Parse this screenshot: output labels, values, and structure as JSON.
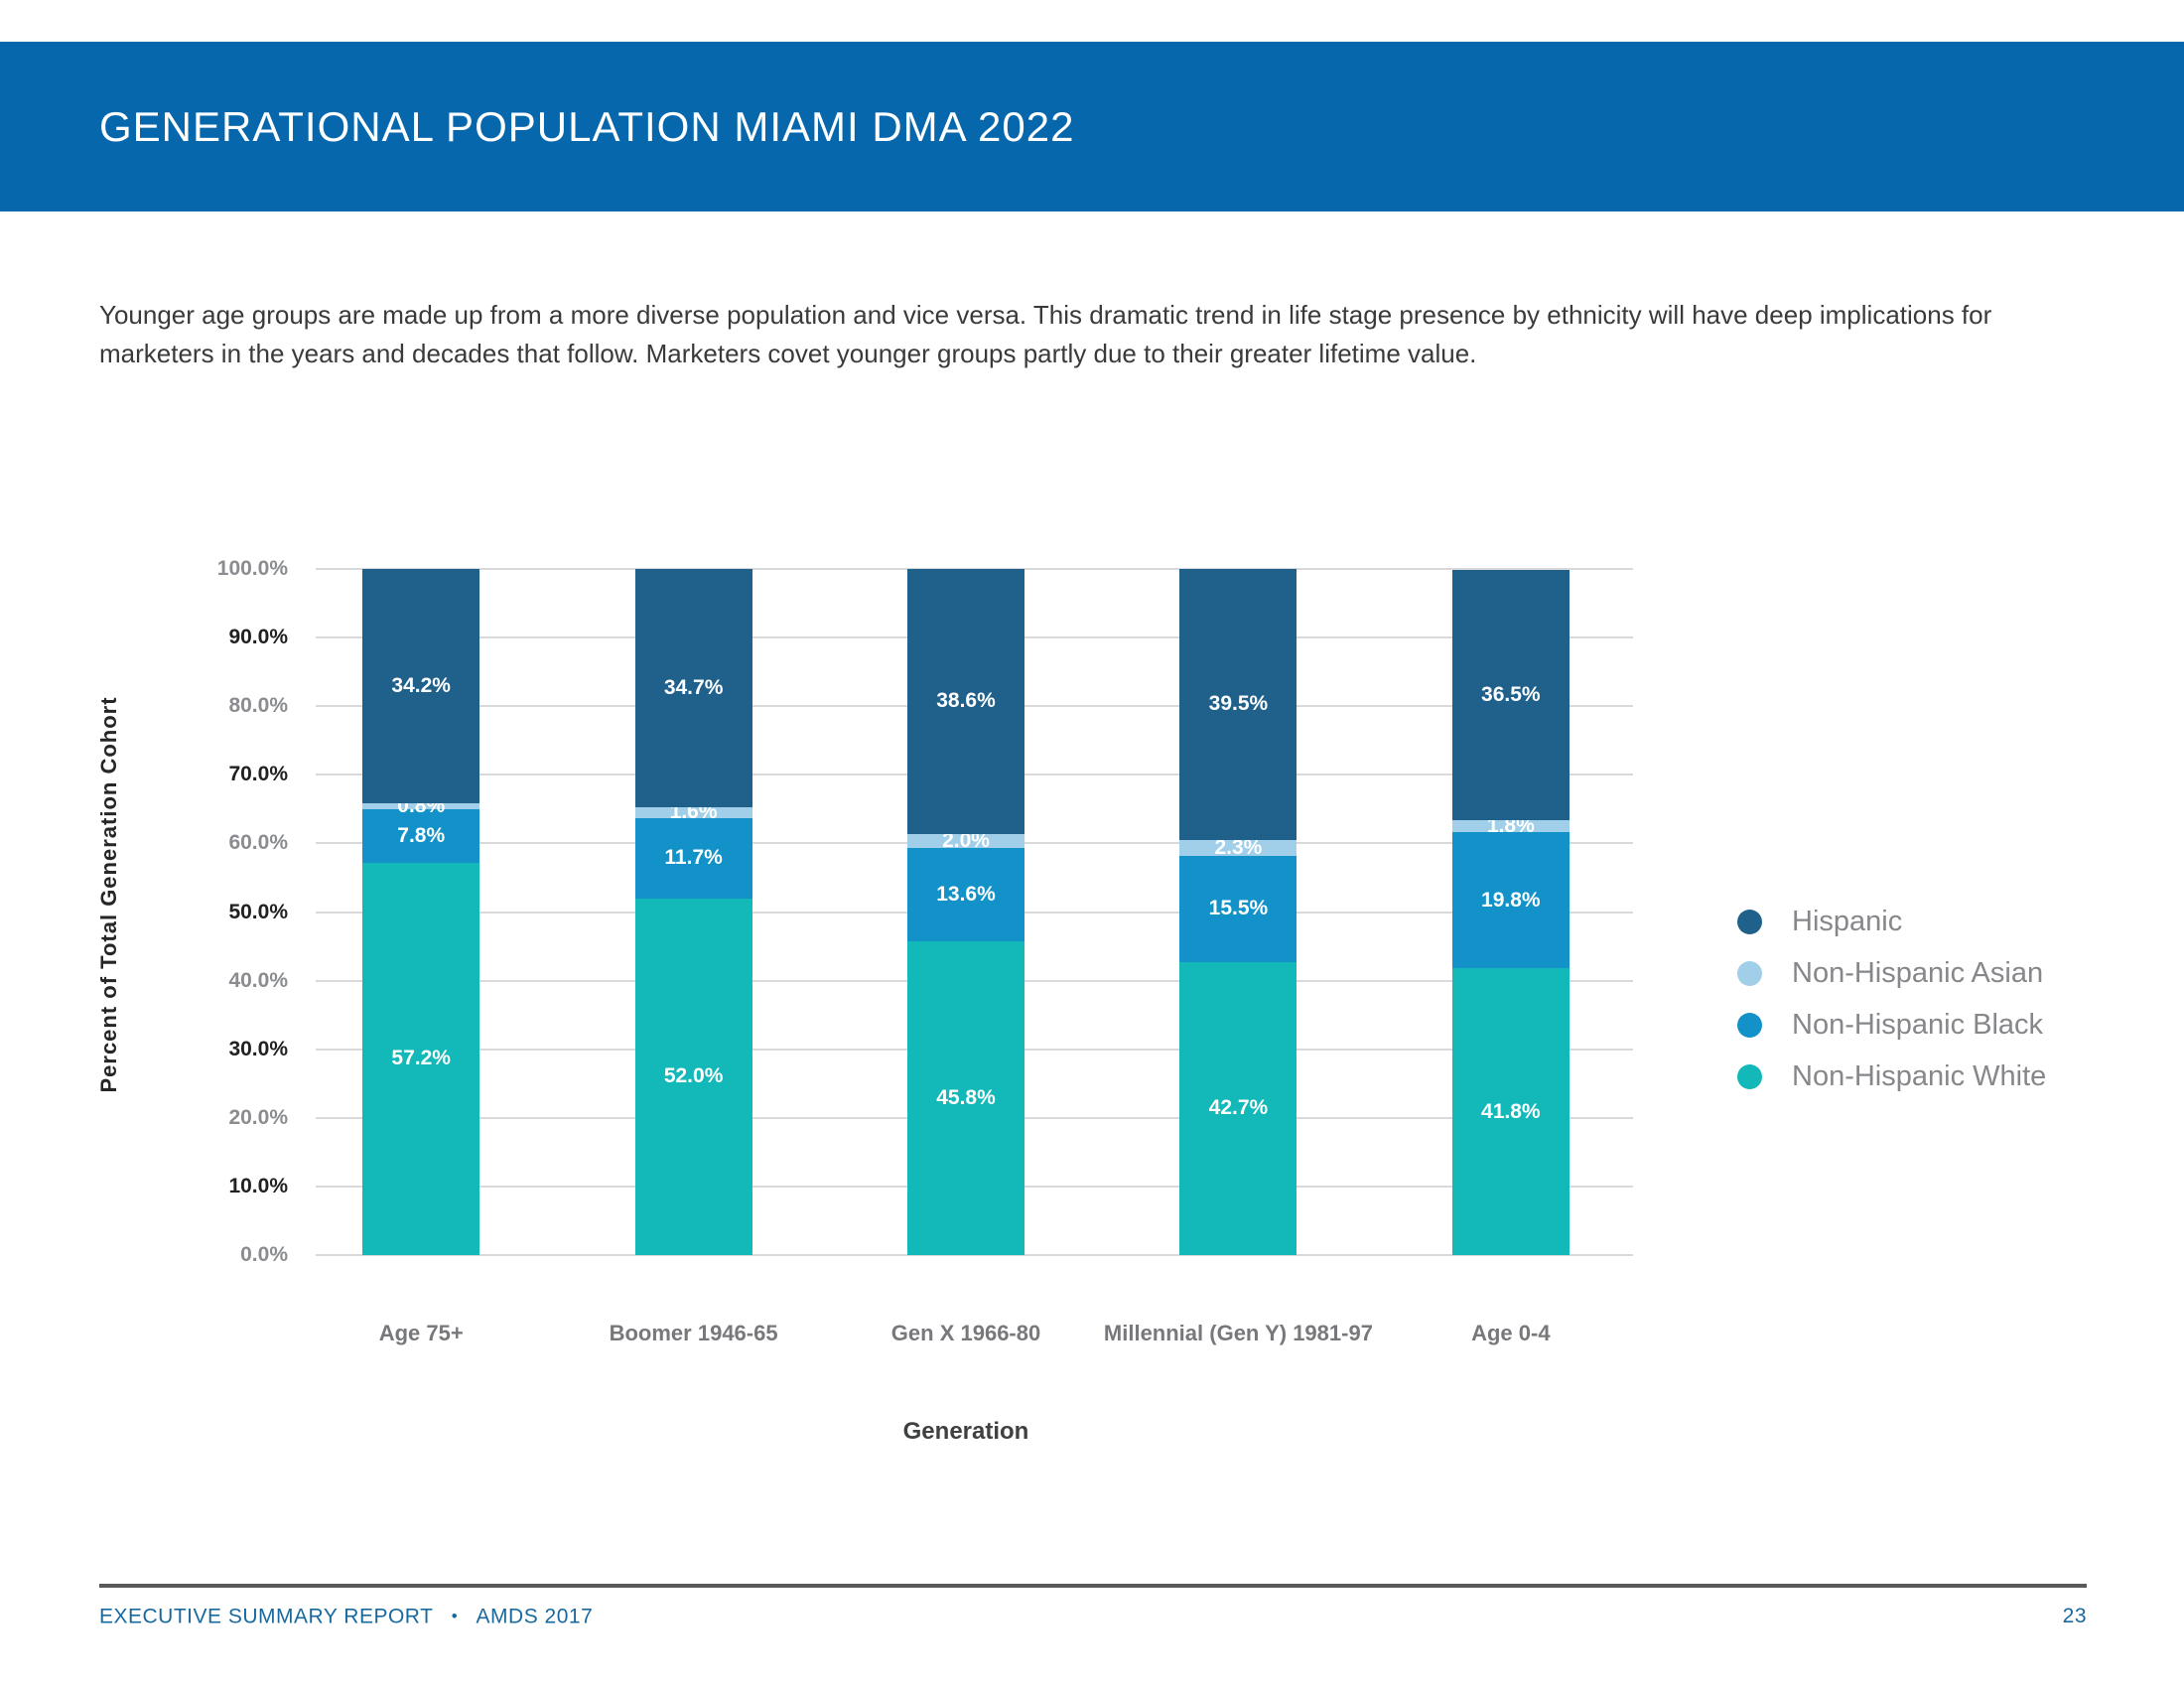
{
  "page": {
    "header": {
      "title": "GENERATIONAL POPULATION MIAMI DMA 2022"
    },
    "intro": "Younger age groups are made up from a more diverse population and vice versa. This dramatic trend in life stage presence by ethnicity will have deep implications for marketers in the years and decades that follow. Marketers covet younger groups partly due to their greater lifetime value.",
    "footer": {
      "report": "EXECUTIVE SUMMARY REPORT",
      "bullet": "•",
      "edition": "AMDS 2017",
      "page_number": "23"
    }
  },
  "colors": {
    "header_band": "#0667AC",
    "gridline": "#D9D9DB",
    "ytick_dark": "#212121",
    "ytick_gray": "#8A8C8F",
    "footer_text": "#19699E"
  },
  "chart_data": {
    "type": "bar",
    "stacked": true,
    "xlabel": "Generation",
    "ylabel": "Percent of Total Generation Cohort",
    "ylim": [
      0,
      100
    ],
    "ytick_step": 10,
    "ytick_labels": [
      "100.0%",
      "90.0%",
      "80.0%",
      "70.0%",
      "60.0%",
      "50.0%",
      "40.0%",
      "30.0%",
      "20.0%",
      "10.0%",
      "0.0%"
    ],
    "grid": "horizontal",
    "legend_position": "right",
    "categories": [
      "Age 75+",
      "Boomer 1946-65",
      "Gen X 1966-80",
      "Millennial (Gen Y) 1981-97",
      "Age 0-4"
    ],
    "series": [
      {
        "name": "Hispanic",
        "color": "#20618C",
        "values": [
          34.2,
          34.7,
          38.6,
          39.5,
          36.5
        ]
      },
      {
        "name": "Non-Hispanic Asian",
        "color": "#A1CEE8",
        "values": [
          0.8,
          1.6,
          2.0,
          2.3,
          1.8
        ]
      },
      {
        "name": "Non-Hispanic Black",
        "color": "#1292C8",
        "values": [
          7.8,
          11.7,
          13.6,
          15.5,
          19.8
        ]
      },
      {
        "name": "Non-Hispanic White",
        "color": "#13B8B9",
        "values": [
          57.2,
          52.0,
          45.8,
          42.7,
          41.8
        ]
      }
    ]
  }
}
